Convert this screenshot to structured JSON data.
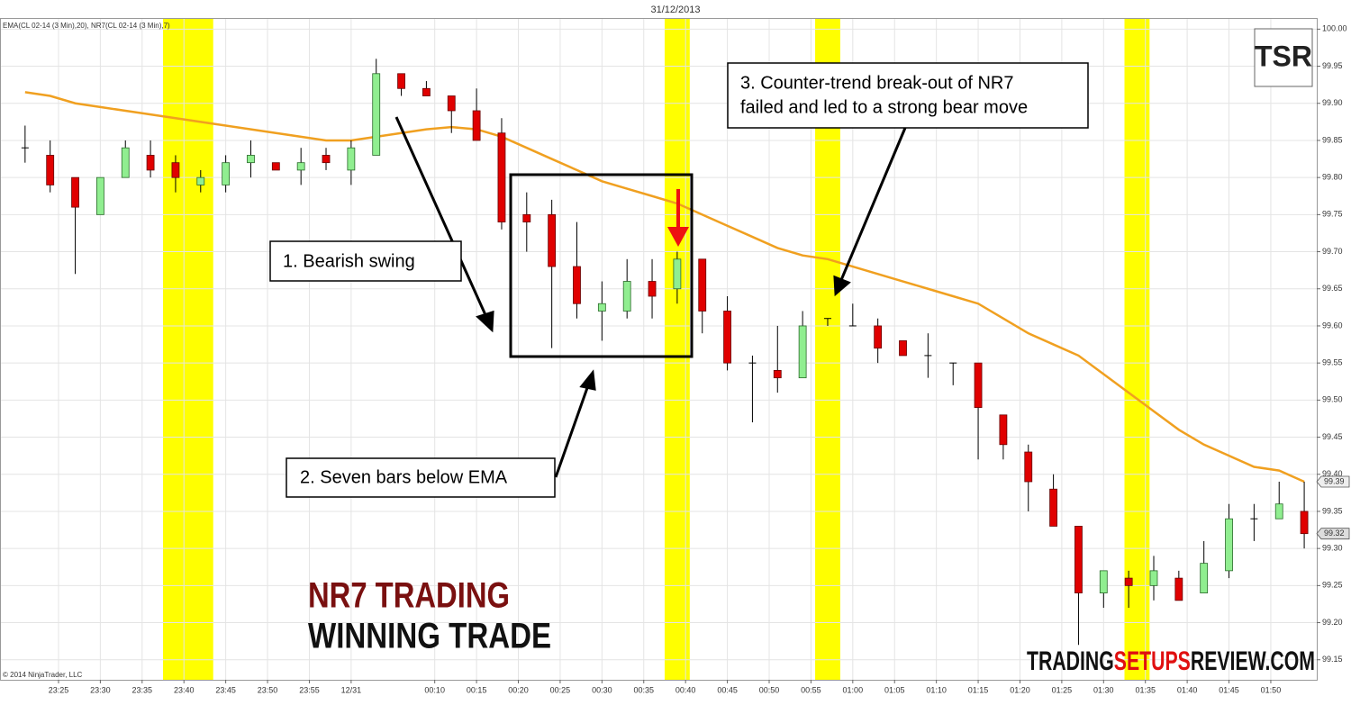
{
  "chart_data": {
    "type": "candlestick",
    "title": "31/12/2013",
    "indicator_label": "EMA(CL 02-14 (3 Min),20), NR7(CL 02-14 (3 Min),7)",
    "copyright": "© 2014 NinjaTrader, LLC",
    "xlim": [
      18,
      175.5
    ],
    "ylim": [
      99.123,
      100.015
    ],
    "grid": true,
    "xticks": [
      {
        "value": 25,
        "label": "23:25"
      },
      {
        "value": 30,
        "label": "23:30"
      },
      {
        "value": 35,
        "label": "23:35"
      },
      {
        "value": 40,
        "label": "23:40"
      },
      {
        "value": 45,
        "label": "23:45"
      },
      {
        "value": 50,
        "label": "23:50"
      },
      {
        "value": 55,
        "label": "23:55"
      },
      {
        "value": 60,
        "label": "12/31"
      },
      {
        "value": 70,
        "label": "00:10"
      },
      {
        "value": 75,
        "label": "00:15"
      },
      {
        "value": 80,
        "label": "00:20"
      },
      {
        "value": 85,
        "label": "00:25"
      },
      {
        "value": 90,
        "label": "00:30"
      },
      {
        "value": 95,
        "label": "00:35"
      },
      {
        "value": 100,
        "label": "00:40"
      },
      {
        "value": 105,
        "label": "00:45"
      },
      {
        "value": 110,
        "label": "00:50"
      },
      {
        "value": 115,
        "label": "00:55"
      },
      {
        "value": 120,
        "label": "01:00"
      },
      {
        "value": 125,
        "label": "01:05"
      },
      {
        "value": 130,
        "label": "01:10"
      },
      {
        "value": 135,
        "label": "01:15"
      },
      {
        "value": 140,
        "label": "01:20"
      },
      {
        "value": 145,
        "label": "01:25"
      },
      {
        "value": 150,
        "label": "01:30"
      },
      {
        "value": 155,
        "label": "01:35"
      },
      {
        "value": 160,
        "label": "01:40"
      },
      {
        "value": 165,
        "label": "01:45"
      },
      {
        "value": 170,
        "label": "01:50"
      }
    ],
    "yticks": [
      99.15,
      {
        "value": 99.2,
        "label": "99.20"
      },
      99.25,
      {
        "value": 99.3,
        "label": "99.30"
      },
      99.35,
      {
        "value": 99.4,
        "label": "99.40"
      },
      99.45,
      {
        "value": 99.5,
        "label": "99.50"
      },
      99.55,
      {
        "value": 99.6,
        "label": "99.60"
      },
      99.65,
      {
        "value": 99.7,
        "label": "99.70"
      },
      99.75,
      {
        "value": 99.8,
        "label": "99.80"
      },
      99.85,
      {
        "value": 99.9,
        "label": "99.90"
      },
      99.95,
      {
        "value": 100,
        "label": "100.00"
      }
    ],
    "highlight_color": "#ffff00",
    "highlights": [
      [
        37.5,
        43.5
      ],
      [
        97.5,
        100.5
      ],
      [
        115.5,
        118.5
      ],
      [
        152.5,
        155.5
      ]
    ],
    "ohlc": {
      "up_color": "#90ee90",
      "down_color": "#e00000",
      "x": [
        21,
        24,
        27,
        30,
        33,
        36,
        39,
        42,
        45,
        48,
        51,
        54,
        57,
        60,
        63,
        66,
        69,
        72,
        75,
        78,
        81,
        84,
        87,
        90,
        93,
        96,
        99,
        102,
        105,
        108,
        111,
        114,
        117,
        120,
        123,
        126,
        129,
        132,
        135,
        138,
        141,
        144,
        147,
        150,
        153,
        156,
        159,
        162,
        165,
        168,
        171,
        174
      ],
      "open": [
        99.84,
        99.83,
        99.8,
        99.75,
        99.8,
        99.83,
        99.82,
        99.79,
        99.79,
        99.82,
        99.82,
        99.81,
        99.83,
        99.81,
        99.83,
        99.94,
        99.92,
        99.91,
        99.89,
        99.86,
        99.75,
        99.75,
        99.68,
        99.62,
        99.62,
        99.66,
        99.65,
        99.69,
        99.62,
        99.55,
        99.54,
        99.53,
        99.61,
        99.6,
        99.6,
        99.58,
        99.56,
        99.55,
        99.55,
        99.48,
        99.43,
        99.38,
        99.33,
        99.24,
        99.26,
        99.25,
        99.26,
        99.24,
        99.27,
        99.34,
        99.34,
        99.35
      ],
      "high": [
        99.87,
        99.85,
        99.8,
        99.8,
        99.85,
        99.85,
        99.83,
        99.81,
        99.83,
        99.85,
        99.82,
        99.84,
        99.84,
        99.85,
        99.96,
        99.94,
        99.93,
        99.91,
        99.92,
        99.88,
        99.78,
        99.77,
        99.74,
        99.66,
        99.69,
        99.69,
        99.7,
        99.69,
        99.64,
        99.56,
        99.6,
        99.62,
        99.61,
        99.63,
        99.61,
        99.58,
        99.59,
        99.55,
        99.55,
        99.48,
        99.44,
        99.4,
        99.33,
        99.27,
        99.27,
        99.29,
        99.27,
        99.31,
        99.36,
        99.36,
        99.39,
        99.39
      ],
      "low": [
        99.82,
        99.78,
        99.67,
        99.75,
        99.8,
        99.8,
        99.78,
        99.78,
        99.78,
        99.8,
        99.81,
        99.79,
        99.81,
        99.79,
        99.83,
        99.91,
        99.91,
        99.86,
        99.85,
        99.73,
        99.7,
        99.57,
        99.61,
        99.58,
        99.61,
        99.61,
        99.63,
        99.59,
        99.54,
        99.47,
        99.51,
        99.53,
        99.6,
        99.6,
        99.55,
        99.56,
        99.53,
        99.52,
        99.42,
        99.42,
        99.35,
        99.33,
        99.17,
        99.22,
        99.22,
        99.23,
        99.23,
        99.24,
        99.26,
        99.31,
        99.34,
        99.3
      ],
      "close": [
        99.84,
        99.79,
        99.76,
        99.8,
        99.84,
        99.81,
        99.8,
        99.8,
        99.82,
        99.83,
        99.81,
        99.82,
        99.82,
        99.84,
        99.94,
        99.92,
        99.91,
        99.89,
        99.85,
        99.74,
        99.74,
        99.68,
        99.63,
        99.63,
        99.66,
        99.64,
        99.69,
        99.62,
        99.55,
        99.55,
        99.53,
        99.6,
        99.61,
        99.6,
        99.57,
        99.56,
        99.56,
        99.55,
        99.49,
        99.44,
        99.39,
        99.33,
        99.24,
        99.27,
        99.25,
        99.27,
        99.23,
        99.28,
        99.34,
        99.34,
        99.36,
        99.32
      ],
      "last_label": "99.32"
    },
    "ema": {
      "color": "#f0a020",
      "values": [
        99.915,
        99.91,
        99.9,
        99.895,
        99.89,
        99.885,
        99.88,
        99.875,
        99.87,
        99.865,
        99.86,
        99.855,
        99.85,
        99.85,
        99.855,
        99.86,
        99.865,
        99.868,
        99.865,
        99.855,
        99.84,
        99.825,
        99.81,
        99.795,
        99.785,
        99.775,
        99.765,
        99.75,
        99.735,
        99.72,
        99.705,
        99.695,
        99.69,
        99.68,
        99.67,
        99.66,
        99.65,
        99.64,
        99.63,
        99.61,
        99.59,
        99.575,
        99.56,
        99.535,
        99.51,
        99.485,
        99.46,
        99.44,
        99.425,
        99.41,
        99.405,
        99.39
      ],
      "last_label": "99.39"
    },
    "annotations": [
      [
        "1. Bearish swing"
      ],
      [
        "2. Seven bars below  EMA"
      ],
      [
        "3. Counter-trend break-out of NR7",
        "failed and led to a strong bear move"
      ]
    ],
    "watermark": [
      "NR7 TRADING",
      "WINNING TRADE"
    ],
    "site": [
      "TRADING",
      "SETUPS",
      "REVIEW.COM"
    ],
    "logo": "TSR"
  }
}
